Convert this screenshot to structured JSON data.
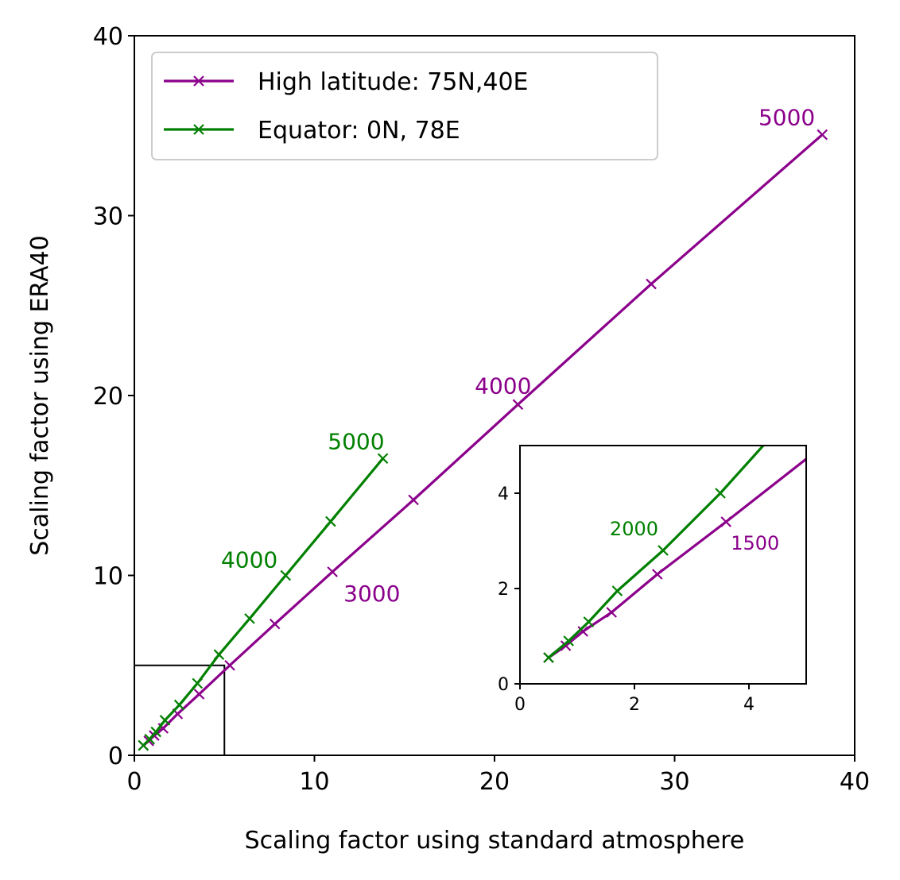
{
  "chart_data": {
    "type": "line",
    "xlabel": "Scaling factor using standard atmosphere",
    "ylabel": "Scaling factor using ERA40",
    "xlim": [
      0,
      40
    ],
    "ylim": [
      0,
      40
    ],
    "xticks": [
      0,
      10,
      20,
      30,
      40
    ],
    "yticks": [
      0,
      10,
      20,
      30,
      40
    ],
    "legend": {
      "placement": "upper-left"
    },
    "series": [
      {
        "name": "High latitude: 75N,40E",
        "color": "#8b008b",
        "marker": "x",
        "points": [
          [
            0.5,
            0.55
          ],
          [
            0.8,
            0.8
          ],
          [
            1.1,
            1.1
          ],
          [
            1.6,
            1.5
          ],
          [
            2.4,
            2.3
          ],
          [
            3.6,
            3.4
          ],
          [
            5.3,
            5.0
          ],
          [
            7.8,
            7.3
          ],
          [
            11.0,
            10.2
          ],
          [
            15.5,
            14.2
          ],
          [
            21.3,
            19.5
          ],
          [
            28.7,
            26.2
          ],
          [
            38.2,
            34.5
          ]
        ]
      },
      {
        "name": "Equator: 0N, 78E",
        "color": "#008000",
        "marker": "x",
        "points": [
          [
            0.5,
            0.55
          ],
          [
            0.85,
            0.9
          ],
          [
            1.2,
            1.3
          ],
          [
            1.7,
            1.95
          ],
          [
            2.5,
            2.8
          ],
          [
            3.5,
            4.0
          ],
          [
            4.7,
            5.6
          ],
          [
            6.4,
            7.6
          ],
          [
            8.4,
            10.0
          ],
          [
            10.9,
            13.0
          ],
          [
            13.8,
            16.5
          ]
        ]
      }
    ],
    "annotations": [
      {
        "text": "5000",
        "series": 0,
        "x": 38.2,
        "y": 34.5
      },
      {
        "text": "4000",
        "series": 0,
        "x": 21.3,
        "y": 19.5
      },
      {
        "text": "3000",
        "series": 0,
        "x": 11.0,
        "y": 10.2
      },
      {
        "text": "5000",
        "series": 1,
        "x": 13.8,
        "y": 16.5
      },
      {
        "text": "4000",
        "series": 1,
        "x": 8.4,
        "y": 10.0
      }
    ],
    "zoom_region": {
      "xlim": [
        0,
        5
      ],
      "ylim": [
        0,
        5
      ]
    },
    "inset": {
      "xlim": [
        0,
        5
      ],
      "ylim": [
        0,
        5
      ],
      "xticks": [
        0,
        2,
        4
      ],
      "yticks": [
        0,
        2,
        4
      ],
      "annotations": [
        {
          "text": "2000",
          "series": 1,
          "x": 2.5,
          "y": 2.8
        },
        {
          "text": "1500",
          "series": 0,
          "x": 3.6,
          "y": 3.4
        }
      ]
    }
  }
}
